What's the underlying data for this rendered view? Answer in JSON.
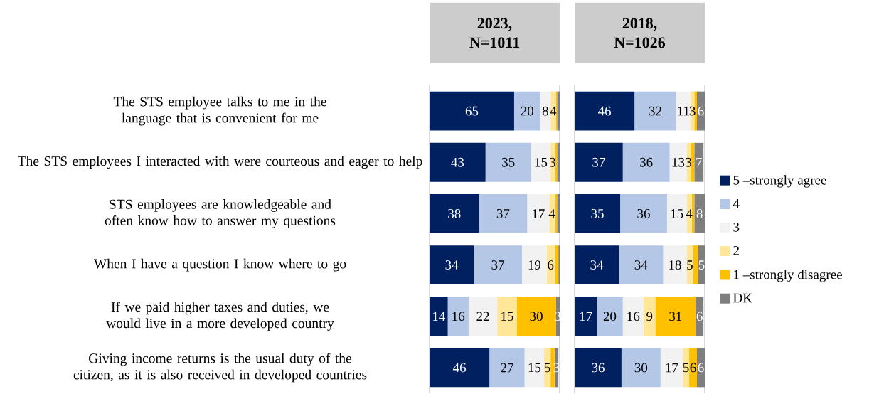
{
  "chart_data": [
    {
      "type": "bar",
      "orientation": "horizontal",
      "stacked": true,
      "title": "2023, N=1011",
      "categories": [
        "The STS employee talks to me in the language that is convenient for me",
        "The STS employees I interacted with were courteous and eager to help",
        "STS employees are knowledgeable and often know how to answer my questions",
        "When I have a question I know where to go",
        "If we paid higher taxes and duties, we would live in a more developed country",
        "Giving income returns is the usual duty of the citizen, as it is also received in developed countries"
      ],
      "xlim": [
        0,
        100
      ],
      "tick_labels": "y",
      "series": [
        {
          "color": "#002060",
          "values": [
            65,
            43,
            38,
            34,
            14,
            46
          ],
          "value_labels": [
            "65",
            "43",
            "38",
            "34",
            "14",
            "46"
          ]
        },
        {
          "color": "#b4c7e7",
          "values": [
            20,
            35,
            37,
            37,
            16,
            27
          ],
          "value_labels": [
            "20",
            "35",
            "37",
            "37",
            "16",
            "27"
          ]
        },
        {
          "color": "#f2f2f2",
          "values": [
            8,
            15,
            17,
            19,
            22,
            15
          ],
          "value_labels": [
            "8",
            "15",
            "17",
            "19",
            "22",
            "15"
          ]
        },
        {
          "color": "#ffe699",
          "values": [
            4,
            3,
            4,
            6,
            15,
            5
          ],
          "value_labels": [
            "4",
            "3",
            "4",
            "6",
            "15",
            "5"
          ]
        },
        {
          "color": "#ffc000",
          "values": [
            1,
            2,
            2,
            3,
            30,
            3
          ],
          "value_labels": [
            null,
            null,
            null,
            null,
            "30",
            null
          ]
        },
        {
          "color": "#7f7f7f",
          "values": [
            2,
            2,
            2,
            1,
            3,
            3
          ],
          "value_labels": [
            null,
            null,
            null,
            null,
            "3",
            "3"
          ]
        }
      ]
    },
    {
      "type": "bar",
      "orientation": "horizontal",
      "stacked": true,
      "title": "2018, N=1026",
      "categories": [
        null,
        null,
        null,
        null,
        null,
        null
      ],
      "xlim": [
        0,
        100
      ],
      "tick_labels": false,
      "legend": "right",
      "series": [
        {
          "name": "5 –strongly agree",
          "color": "#002060",
          "values": [
            46,
            37,
            35,
            34,
            17,
            36
          ],
          "value_labels": [
            "46",
            "37",
            "35",
            "34",
            "17",
            "36"
          ]
        },
        {
          "name": "4",
          "color": "#b4c7e7",
          "values": [
            32,
            36,
            36,
            34,
            20,
            30
          ],
          "value_labels": [
            "32",
            "36",
            "36",
            "34",
            "20",
            "30"
          ]
        },
        {
          "name": "3",
          "color": "#f2f2f2",
          "values": [
            11,
            13,
            15,
            18,
            16,
            17
          ],
          "value_labels": [
            "11",
            "13",
            "15",
            "18",
            "16",
            "17"
          ]
        },
        {
          "name": "2",
          "color": "#ffe699",
          "values": [
            3,
            3,
            4,
            5,
            9,
            5
          ],
          "value_labels": [
            "3",
            "3",
            "4",
            "5",
            "9",
            "5"
          ]
        },
        {
          "name": "1 –strongly disagree",
          "color": "#ffc000",
          "values": [
            2,
            3,
            2,
            4,
            31,
            6
          ],
          "value_labels": [
            null,
            null,
            null,
            null,
            "31",
            "6"
          ]
        },
        {
          "name": "DK",
          "color": "#7f7f7f",
          "values": [
            6,
            7,
            8,
            5,
            6,
            6
          ],
          "value_labels": [
            "6",
            "7",
            "8",
            "5",
            "6",
            "6"
          ]
        }
      ]
    }
  ]
}
